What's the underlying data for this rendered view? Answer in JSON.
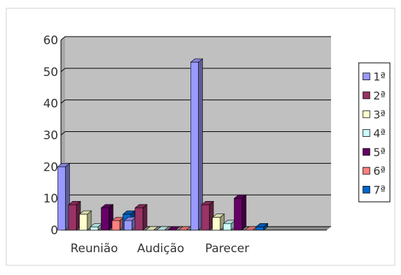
{
  "chart_data": {
    "type": "bar",
    "style": "3d-clustered",
    "categories": [
      "Reunião",
      "Audição",
      "Parecer"
    ],
    "extra_empty_category": true,
    "ylim": [
      0,
      60
    ],
    "yticks": [
      0,
      10,
      20,
      30,
      40,
      50,
      60
    ],
    "ytick_labels": [
      "0",
      "10",
      "20",
      "30",
      "40",
      "50",
      "60"
    ],
    "grid": true,
    "legend_position": "right",
    "series": [
      {
        "name": "1ª",
        "values": [
          20,
          3,
          53
        ],
        "color": "#9999ff"
      },
      {
        "name": "2ª",
        "values": [
          8,
          7,
          8
        ],
        "color": "#993366"
      },
      {
        "name": "3ª",
        "values": [
          5,
          0,
          4
        ],
        "color": "#ffffcc"
      },
      {
        "name": "4ª",
        "values": [
          1,
          0,
          2
        ],
        "color": "#ccffff"
      },
      {
        "name": "5ª",
        "values": [
          7,
          0,
          10
        ],
        "color": "#660066"
      },
      {
        "name": "6ª",
        "values": [
          3,
          0,
          0
        ],
        "color": "#ff8080"
      },
      {
        "name": "7ª",
        "values": [
          5,
          0,
          1
        ],
        "color": "#0066cc"
      }
    ],
    "colors": {
      "plot_background": "#c0c0c0",
      "gridline": "#000000",
      "border": "#cccccc"
    }
  }
}
